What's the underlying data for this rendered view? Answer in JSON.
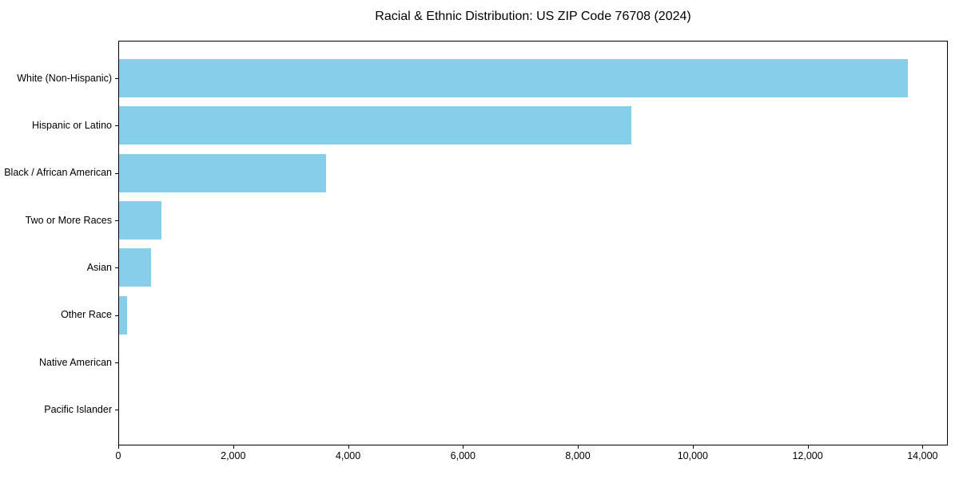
{
  "chart_data": {
    "type": "bar",
    "orientation": "horizontal",
    "title": "Racial & Ethnic Distribution: US ZIP Code 76708 (2024)",
    "categories": [
      "White (Non-Hispanic)",
      "Hispanic or Latino",
      "Black / African American",
      "Two or More Races",
      "Asian",
      "Other Race",
      "Native American",
      "Pacific Islander"
    ],
    "values": [
      13750,
      8930,
      3610,
      745,
      570,
      150,
      0,
      0
    ],
    "xlabel": "",
    "ylabel": "",
    "xlim": [
      0,
      14440
    ],
    "x_ticks": [
      0,
      2000,
      4000,
      6000,
      8000,
      10000,
      12000,
      14000
    ],
    "x_tick_labels": [
      "0",
      "2,000",
      "4,000",
      "6,000",
      "8,000",
      "10,000",
      "12,000",
      "14,000"
    ],
    "bar_color": "#87CEEB",
    "text_color": "#000000",
    "background_color": "#FFFFFF",
    "grid": false,
    "legend": "none"
  }
}
